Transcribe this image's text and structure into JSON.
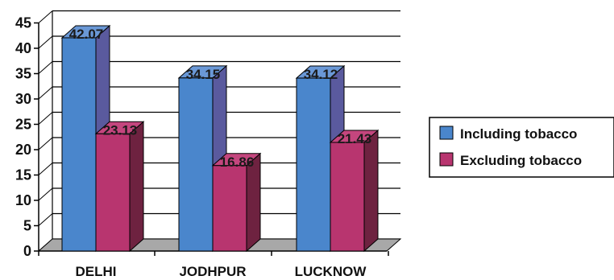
{
  "chart_data": {
    "type": "bar",
    "style": "3d-clustered-column",
    "title": "",
    "xlabel": "",
    "ylabel": "",
    "categories": [
      "DELHI",
      "JODHPUR",
      "LUCKNOW"
    ],
    "series": [
      {
        "name": "Including tobacco",
        "color": "#4a86cc",
        "side_color": "#5a5a9e",
        "top_color": "#6a98d6",
        "values": [
          42.07,
          34.15,
          34.12
        ],
        "labels": [
          "42.07",
          "34.15",
          "34.12"
        ]
      },
      {
        "name": "Excluding tobacco",
        "color": "#b8356f",
        "side_color": "#6e2240",
        "top_color": "#c4467e",
        "values": [
          23.13,
          16.86,
          21.43
        ],
        "labels": [
          "23.13",
          "16.86",
          "21.43"
        ]
      }
    ],
    "ylim": [
      0,
      45
    ],
    "yticks": [
      0,
      5,
      10,
      15,
      20,
      25,
      30,
      35,
      40,
      45
    ],
    "ytick_labels": [
      "0",
      "5",
      "10",
      "15",
      "20",
      "25",
      "30",
      "35",
      "40",
      "45"
    ],
    "grid": true,
    "legend_position": "right",
    "floor_color": "#a8a8a8"
  }
}
